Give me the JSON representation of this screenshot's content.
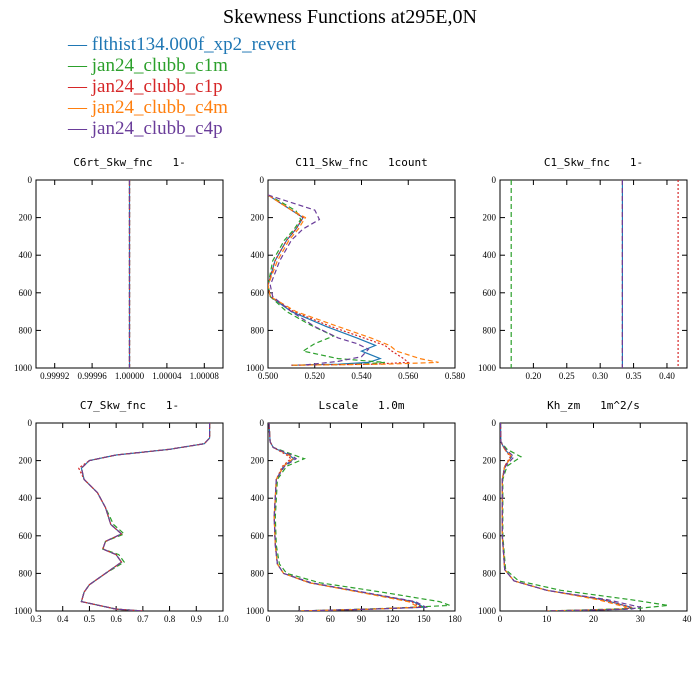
{
  "title": "Skewness Functions at295E,0N",
  "legend": [
    {
      "name": "flthist134.000f_xp2_revert",
      "color": "#1f77b4",
      "dash": "none"
    },
    {
      "name": "jan24_clubb_c1m",
      "color": "#2ca02c",
      "dash": "5,3"
    },
    {
      "name": "jan24_clubb_c1p",
      "color": "#d62728",
      "dash": "2,2"
    },
    {
      "name": "jan24_clubb_c4m",
      "color": "#ff7f0e",
      "dash": "5,3"
    },
    {
      "name": "jan24_clubb_c4p",
      "color": "#6a3d9a",
      "dash": "5,3"
    }
  ],
  "chart_data": [
    {
      "type": "line",
      "title": "C6rt_Skw_fnc   1-",
      "xlim": [
        0.9999,
        1.0001
      ],
      "ylim": [
        1000,
        0
      ],
      "xticks": [
        0.99992,
        0.99996,
        1.0,
        1.00004,
        1.00008
      ],
      "xtick_labels": [
        "0.99992",
        "0.99996",
        "1.00000",
        "1.00004",
        "1.00008"
      ],
      "yticks": [
        0,
        200,
        400,
        600,
        800,
        1000
      ],
      "series": [
        {
          "name": "flthist134.000f_xp2_revert",
          "x": [
            1.0,
            1.0
          ],
          "y": [
            0,
            1000
          ]
        },
        {
          "name": "jan24_clubb_c1m",
          "x": [
            1.0,
            1.0
          ],
          "y": [
            0,
            1000
          ]
        },
        {
          "name": "jan24_clubb_c1p",
          "x": [
            1.0,
            1.0
          ],
          "y": [
            0,
            1000
          ]
        },
        {
          "name": "jan24_clubb_c4m",
          "x": [
            1.0,
            1.0
          ],
          "y": [
            0,
            1000
          ]
        },
        {
          "name": "jan24_clubb_c4p",
          "x": [
            1.0,
            1.0
          ],
          "y": [
            0,
            1000
          ]
        }
      ]
    },
    {
      "type": "line",
      "title": "C11_Skw_fnc   1count",
      "xlim": [
        0.5,
        0.58
      ],
      "ylim": [
        1000,
        0
      ],
      "xticks": [
        0.5,
        0.52,
        0.54,
        0.56,
        0.58
      ],
      "xtick_labels": [
        "0.500",
        "0.520",
        "0.540",
        "0.560",
        "0.580"
      ],
      "yticks": [
        0,
        200,
        400,
        600,
        800,
        1000
      ],
      "series": [
        {
          "name": "flthist134.000f_xp2_revert",
          "x": [
            0.5,
            0.505,
            0.51,
            0.515,
            0.512,
            0.508,
            0.503,
            0.5,
            0.501,
            0.51,
            0.525,
            0.538,
            0.546,
            0.54,
            0.548,
            0.543,
            0.53,
            0.51
          ],
          "y": [
            80,
            120,
            160,
            200,
            260,
            320,
            430,
            560,
            620,
            700,
            780,
            840,
            880,
            910,
            950,
            970,
            980,
            985
          ]
        },
        {
          "name": "jan24_clubb_c1m",
          "x": [
            0.5,
            0.506,
            0.512,
            0.514,
            0.511,
            0.507,
            0.502,
            0.5,
            0.501,
            0.508,
            0.518,
            0.528,
            0.52,
            0.515,
            0.53,
            0.55,
            0.54,
            0.51
          ],
          "y": [
            80,
            120,
            165,
            210,
            265,
            320,
            430,
            560,
            620,
            700,
            770,
            830,
            870,
            910,
            950,
            970,
            980,
            985
          ]
        },
        {
          "name": "jan24_clubb_c1p",
          "x": [
            0.5,
            0.505,
            0.51,
            0.515,
            0.512,
            0.508,
            0.503,
            0.5,
            0.501,
            0.511,
            0.527,
            0.541,
            0.55,
            0.553,
            0.558,
            0.56,
            0.545,
            0.51
          ],
          "y": [
            80,
            120,
            160,
            200,
            260,
            320,
            430,
            560,
            620,
            700,
            780,
            840,
            880,
            910,
            950,
            970,
            980,
            985
          ]
        },
        {
          "name": "jan24_clubb_c4m",
          "x": [
            0.5,
            0.505,
            0.51,
            0.516,
            0.513,
            0.509,
            0.504,
            0.5,
            0.501,
            0.512,
            0.53,
            0.544,
            0.552,
            0.555,
            0.565,
            0.573,
            0.55,
            0.51
          ],
          "y": [
            80,
            120,
            160,
            200,
            260,
            320,
            430,
            560,
            620,
            700,
            780,
            840,
            880,
            910,
            950,
            970,
            980,
            985
          ]
        },
        {
          "name": "jan24_clubb_c4p",
          "x": [
            0.5,
            0.51,
            0.52,
            0.522,
            0.515,
            0.51,
            0.505,
            0.501,
            0.502,
            0.51,
            0.52,
            0.53,
            0.538,
            0.543,
            0.54,
            0.53,
            0.515
          ],
          "y": [
            80,
            120,
            160,
            210,
            260,
            320,
            430,
            560,
            620,
            700,
            780,
            840,
            870,
            900,
            940,
            965,
            985
          ]
        }
      ]
    },
    {
      "type": "line",
      "title": "C1_Skw_fnc   1-",
      "xlim": [
        0.15,
        0.43
      ],
      "ylim": [
        1000,
        0
      ],
      "xticks": [
        0.2,
        0.25,
        0.3,
        0.35,
        0.4
      ],
      "xtick_labels": [
        "0.20",
        "0.25",
        "0.30",
        "0.35",
        "0.40"
      ],
      "yticks": [
        0,
        200,
        400,
        600,
        800,
        1000
      ],
      "series": [
        {
          "name": "flthist134.000f_xp2_revert",
          "x": [
            0.3333,
            0.3333
          ],
          "y": [
            0,
            1000
          ]
        },
        {
          "name": "jan24_clubb_c1m",
          "x": [
            0.1667,
            0.1667
          ],
          "y": [
            0,
            1000
          ]
        },
        {
          "name": "jan24_clubb_c1p",
          "x": [
            0.4167,
            0.4167
          ],
          "y": [
            0,
            1000
          ]
        },
        {
          "name": "jan24_clubb_c4m",
          "x": [
            0.3333,
            0.3333
          ],
          "y": [
            0,
            1000
          ]
        },
        {
          "name": "jan24_clubb_c4p",
          "x": [
            0.3333,
            0.3333
          ],
          "y": [
            0,
            1000
          ]
        }
      ]
    },
    {
      "type": "line",
      "title": "C7_Skw_fnc   1-",
      "xlim": [
        0.3,
        1.0
      ],
      "ylim": [
        1000,
        0
      ],
      "xticks": [
        0.3,
        0.4,
        0.5,
        0.6,
        0.7,
        0.8,
        0.9,
        1.0
      ],
      "xtick_labels": [
        "0.3",
        "0.4",
        "0.5",
        "0.6",
        "0.7",
        "0.8",
        "0.9",
        "1.0"
      ],
      "yticks": [
        0,
        200,
        400,
        600,
        800,
        1000
      ],
      "series": [
        {
          "name": "flthist134.000f_xp2_revert",
          "x": [
            0.95,
            0.95,
            0.93,
            0.8,
            0.6,
            0.5,
            0.47,
            0.48,
            0.53,
            0.56,
            0.58,
            0.62,
            0.56,
            0.55,
            0.6,
            0.62,
            0.56,
            0.5,
            0.48,
            0.47,
            0.6,
            0.7
          ],
          "y": [
            0,
            80,
            110,
            140,
            170,
            200,
            240,
            300,
            370,
            450,
            540,
            590,
            630,
            670,
            700,
            740,
            800,
            860,
            900,
            950,
            990,
            1000
          ]
        },
        {
          "name": "jan24_clubb_c1m",
          "x": [
            0.95,
            0.95,
            0.93,
            0.8,
            0.6,
            0.5,
            0.47,
            0.48,
            0.53,
            0.56,
            0.59,
            0.63,
            0.56,
            0.55,
            0.61,
            0.63,
            0.56,
            0.5,
            0.48,
            0.47,
            0.6,
            0.7
          ],
          "y": [
            0,
            80,
            110,
            140,
            170,
            200,
            240,
            300,
            370,
            450,
            540,
            590,
            630,
            670,
            700,
            740,
            800,
            860,
            900,
            950,
            990,
            1000
          ]
        },
        {
          "name": "jan24_clubb_c1p",
          "x": [
            0.95,
            0.95,
            0.93,
            0.8,
            0.6,
            0.5,
            0.46,
            0.48,
            0.53,
            0.56,
            0.58,
            0.62,
            0.56,
            0.55,
            0.6,
            0.62,
            0.56,
            0.5,
            0.48,
            0.47,
            0.6,
            0.7
          ],
          "y": [
            0,
            80,
            110,
            140,
            170,
            200,
            240,
            300,
            370,
            450,
            540,
            590,
            630,
            670,
            700,
            740,
            800,
            860,
            900,
            950,
            990,
            1000
          ]
        },
        {
          "name": "jan24_clubb_c4m",
          "x": [
            0.95,
            0.95,
            0.93,
            0.8,
            0.6,
            0.5,
            0.47,
            0.48,
            0.53,
            0.56,
            0.58,
            0.62,
            0.56,
            0.55,
            0.6,
            0.62,
            0.56,
            0.5,
            0.48,
            0.47,
            0.6,
            0.7
          ],
          "y": [
            0,
            80,
            110,
            140,
            170,
            200,
            240,
            300,
            370,
            450,
            540,
            590,
            630,
            670,
            700,
            740,
            800,
            860,
            900,
            950,
            990,
            1000
          ]
        },
        {
          "name": "jan24_clubb_c4p",
          "x": [
            0.95,
            0.95,
            0.93,
            0.8,
            0.6,
            0.5,
            0.47,
            0.48,
            0.53,
            0.56,
            0.58,
            0.62,
            0.56,
            0.55,
            0.6,
            0.62,
            0.56,
            0.5,
            0.48,
            0.47,
            0.6,
            0.7
          ],
          "y": [
            0,
            80,
            110,
            140,
            170,
            200,
            240,
            300,
            370,
            450,
            540,
            590,
            630,
            670,
            700,
            740,
            800,
            860,
            900,
            950,
            990,
            1000
          ]
        }
      ]
    },
    {
      "type": "line",
      "title": "Lscale   1.0m",
      "xlim": [
        0,
        180
      ],
      "ylim": [
        1000,
        0
      ],
      "xticks": [
        0,
        30,
        60,
        90,
        120,
        150,
        180
      ],
      "xtick_labels": [
        "0",
        "30",
        "60",
        "90",
        "120",
        "150",
        "180"
      ],
      "yticks": [
        0,
        200,
        400,
        600,
        800,
        1000
      ],
      "series": [
        {
          "name": "flthist134.000f_xp2_revert",
          "x": [
            1,
            2,
            5,
            20,
            25,
            15,
            8,
            6,
            7,
            9,
            15,
            40,
            90,
            140,
            150,
            100,
            30
          ],
          "y": [
            0,
            100,
            130,
            170,
            190,
            230,
            300,
            500,
            650,
            750,
            800,
            850,
            900,
            950,
            980,
            990,
            1000
          ]
        },
        {
          "name": "jan24_clubb_c1m",
          "x": [
            1,
            2,
            5,
            25,
            35,
            18,
            9,
            7,
            8,
            11,
            18,
            50,
            110,
            165,
            175,
            120,
            30
          ],
          "y": [
            0,
            100,
            130,
            170,
            190,
            230,
            300,
            500,
            650,
            750,
            800,
            850,
            900,
            950,
            970,
            985,
            1000
          ]
        },
        {
          "name": "jan24_clubb_c1p",
          "x": [
            1,
            2,
            5,
            18,
            22,
            14,
            8,
            6,
            7,
            9,
            15,
            40,
            90,
            138,
            148,
            100,
            30
          ],
          "y": [
            0,
            100,
            130,
            170,
            190,
            230,
            300,
            500,
            650,
            750,
            800,
            850,
            900,
            950,
            980,
            990,
            1000
          ]
        },
        {
          "name": "jan24_clubb_c4m",
          "x": [
            1,
            2,
            5,
            20,
            24,
            15,
            8,
            6,
            7,
            9,
            15,
            40,
            88,
            135,
            145,
            100,
            30
          ],
          "y": [
            0,
            100,
            130,
            170,
            190,
            230,
            300,
            500,
            650,
            750,
            800,
            850,
            900,
            950,
            980,
            990,
            1000
          ]
        },
        {
          "name": "jan24_clubb_c4p",
          "x": [
            1,
            2,
            5,
            22,
            27,
            16,
            8,
            6,
            7,
            9,
            15,
            42,
            92,
            142,
            152,
            100,
            30
          ],
          "y": [
            0,
            100,
            130,
            170,
            190,
            230,
            300,
            500,
            650,
            750,
            800,
            850,
            900,
            950,
            980,
            990,
            1000
          ]
        }
      ]
    },
    {
      "type": "line",
      "title": "Kh_zm   1m^2/s",
      "xlim": [
        0,
        40
      ],
      "ylim": [
        1000,
        0
      ],
      "xticks": [
        0,
        10,
        20,
        30,
        40
      ],
      "xtick_labels": [
        "0",
        "10",
        "20",
        "30",
        "40"
      ],
      "yticks": [
        0,
        200,
        400,
        600,
        800,
        1000
      ],
      "series": [
        {
          "name": "flthist134.000f_xp2_revert",
          "x": [
            0.1,
            0.2,
            1,
            2.5,
            1,
            0.5,
            0.5,
            1,
            3,
            10,
            22,
            28,
            27,
            10
          ],
          "y": [
            0,
            100,
            140,
            180,
            230,
            300,
            600,
            780,
            840,
            890,
            940,
            980,
            990,
            1000
          ]
        },
        {
          "name": "jan24_clubb_c1m",
          "x": [
            0.1,
            0.2,
            1.5,
            4.5,
            1.5,
            0.6,
            0.6,
            1.2,
            4,
            13,
            28,
            36,
            30,
            10
          ],
          "y": [
            0,
            100,
            140,
            180,
            230,
            300,
            600,
            780,
            840,
            890,
            940,
            970,
            985,
            1000
          ]
        },
        {
          "name": "jan24_clubb_c1p",
          "x": [
            0.1,
            0.2,
            1,
            2.2,
            1,
            0.5,
            0.5,
            1,
            3,
            10,
            22,
            28,
            27,
            10
          ],
          "y": [
            0,
            100,
            140,
            180,
            230,
            300,
            600,
            780,
            840,
            890,
            940,
            980,
            990,
            1000
          ]
        },
        {
          "name": "jan24_clubb_c4m",
          "x": [
            0.1,
            0.2,
            1,
            2.5,
            1,
            0.5,
            0.5,
            1,
            3,
            10,
            21,
            27,
            26,
            10
          ],
          "y": [
            0,
            100,
            140,
            180,
            230,
            300,
            600,
            780,
            840,
            890,
            940,
            980,
            990,
            1000
          ]
        },
        {
          "name": "jan24_clubb_c4p",
          "x": [
            0.1,
            0.2,
            1.2,
            3,
            1.2,
            0.5,
            0.5,
            1,
            3,
            10,
            23,
            30,
            28,
            10
          ],
          "y": [
            0,
            100,
            140,
            180,
            230,
            300,
            600,
            780,
            840,
            890,
            940,
            980,
            990,
            1000
          ]
        }
      ]
    }
  ]
}
